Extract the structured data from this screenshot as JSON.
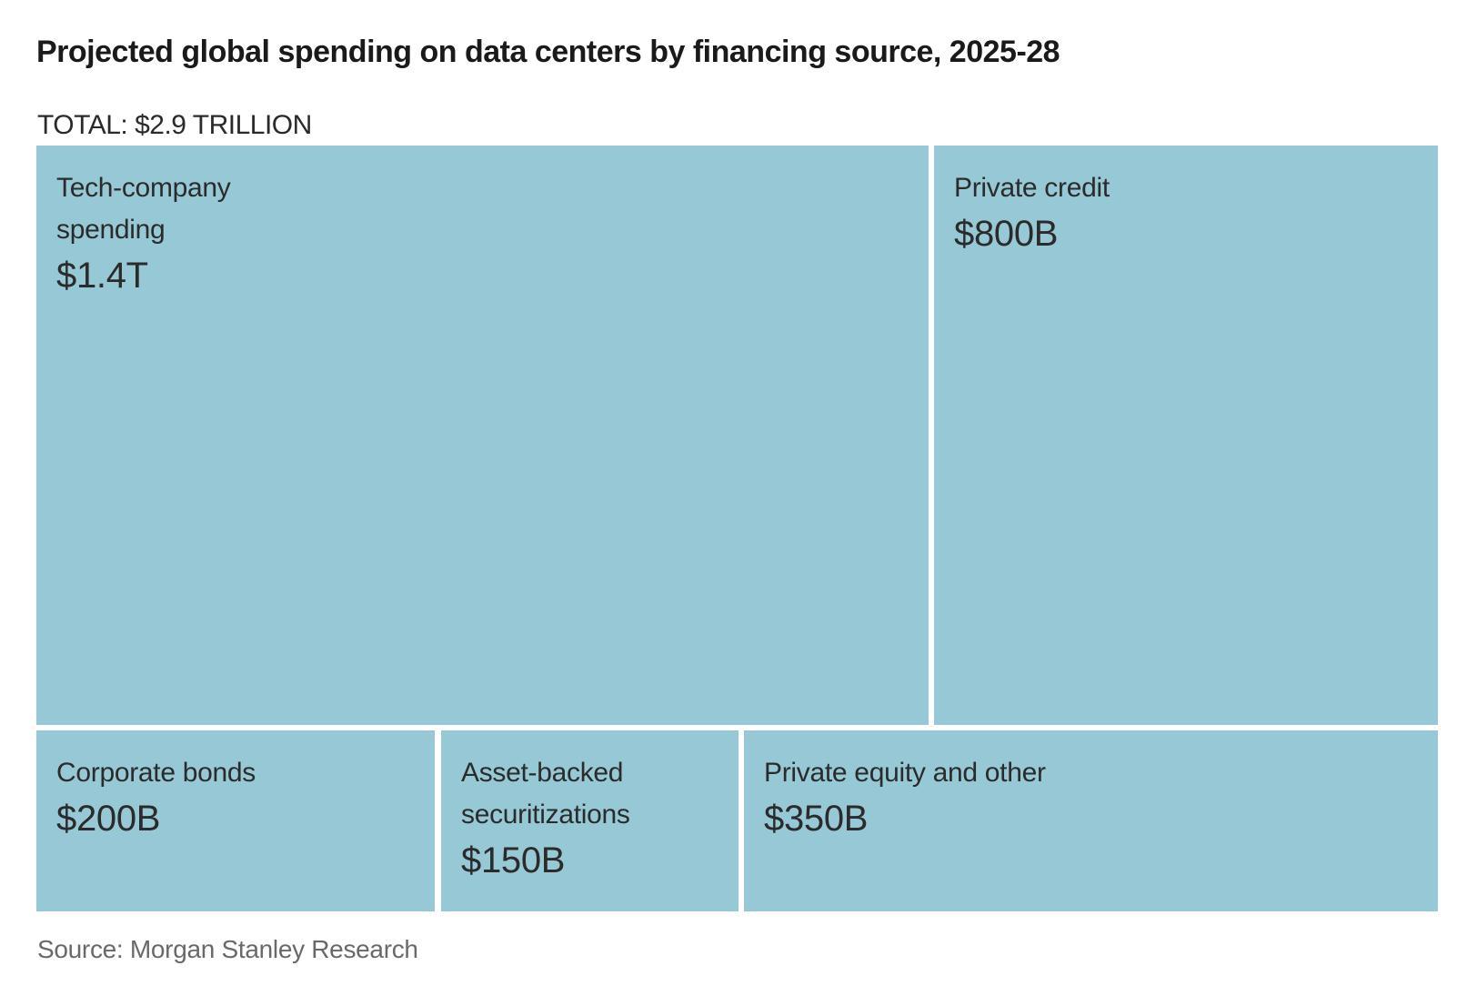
{
  "header": {
    "title": "Projected global spending on data centers by financing source, 2025-28",
    "total_label": "TOTAL: $2.9 TRILLION"
  },
  "treemap": {
    "cells": {
      "tech": {
        "label": "Tech-company spending",
        "value": "$1.4T"
      },
      "private_credit": {
        "label": "Private credit",
        "value": "$800B"
      },
      "corporate_bonds": {
        "label": "Corporate bonds",
        "value": "$200B"
      },
      "asset_backed": {
        "label": "Asset-backed securitizations",
        "value": "$150B"
      },
      "private_equity": {
        "label": "Private equity and other",
        "value": "$350B"
      }
    }
  },
  "source": "Source: Morgan Stanley Research",
  "colors": {
    "cell_fill": "#96c8d6",
    "title_text": "#1a1a1a",
    "cell_text": "#2b2b2b",
    "source_text": "#696969",
    "background": "#ffffff"
  },
  "chart_data": {
    "type": "treemap",
    "title": "Projected global spending on data centers by financing source, 2025-28",
    "total_label": "TOTAL: $2.9 TRILLION",
    "total_value_billions": 2900,
    "unit": "USD billions",
    "categories": [
      "Tech-company spending",
      "Private credit",
      "Private equity and other",
      "Corporate bonds",
      "Asset-backed securitizations"
    ],
    "values": [
      1400,
      800,
      350,
      200,
      150
    ],
    "value_labels": [
      "$1.4T",
      "$800B",
      "$350B",
      "$200B",
      "$150B"
    ],
    "layout": "top row: Tech-company spending + Private credit; bottom row: Corporate bonds, Asset-backed securitizations, Private equity and other",
    "legend": false,
    "grid": false,
    "source": "Source: Morgan Stanley Research"
  }
}
